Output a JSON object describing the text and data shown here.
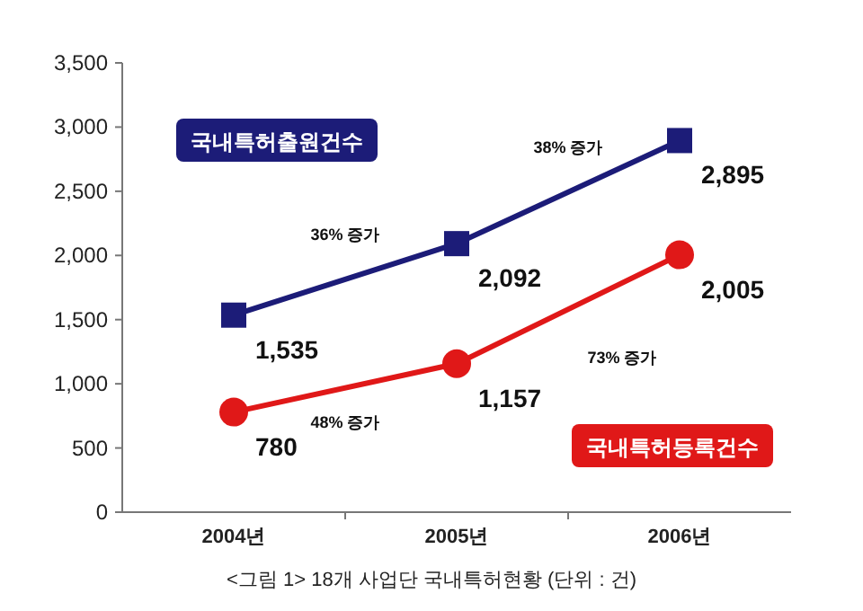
{
  "chart_data": {
    "type": "line",
    "categories": [
      "2004년",
      "2005년",
      "2006년"
    ],
    "series": [
      {
        "name": "국내특허출원건수",
        "color": "#1c1c78",
        "marker": "square",
        "values": [
          1535,
          2092,
          2895
        ]
      },
      {
        "name": "국내특허등록건수",
        "color": "#e01818",
        "marker": "circle",
        "values": [
          780,
          1157,
          2005
        ]
      }
    ],
    "ylim": [
      0,
      3500
    ],
    "yticks": [
      {
        "value": 0,
        "label": "0"
      },
      {
        "value": 500,
        "label": "500"
      },
      {
        "value": 1000,
        "label": "1,000"
      },
      {
        "value": 1500,
        "label": "1,500"
      },
      {
        "value": 2000,
        "label": "2,000"
      },
      {
        "value": 2500,
        "label": "2,500"
      },
      {
        "value": 3000,
        "label": "3,000"
      },
      {
        "value": 3500,
        "label": "3,500"
      }
    ],
    "value_labels": [
      [
        "1,535",
        "2,092",
        "2,895"
      ],
      [
        "780",
        "1,157",
        "2,005"
      ]
    ],
    "grid": false,
    "annotations": [
      "36% 증가",
      "38% 증가",
      "48% 증가",
      "73% 증가",
      "<그림 1> 18개 사업단 국내특허현황 (단위 : 건)"
    ]
  }
}
